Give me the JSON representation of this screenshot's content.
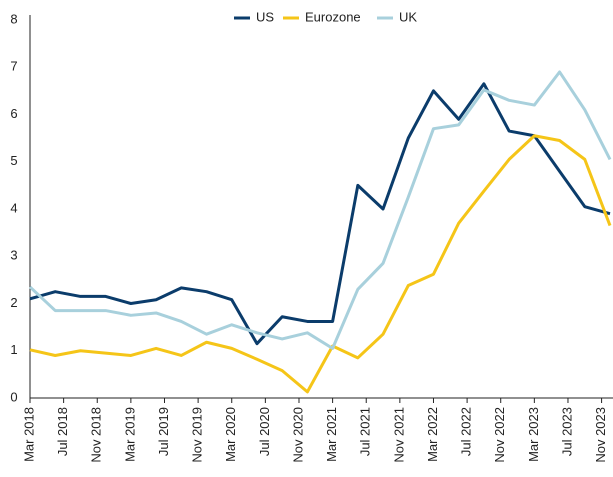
{
  "chart_data": {
    "type": "line",
    "x": [
      "2018-03",
      "2018-06",
      "2018-09",
      "2018-12",
      "2019-03",
      "2019-06",
      "2019-09",
      "2019-12",
      "2020-03",
      "2020-06",
      "2020-09",
      "2020-12",
      "2021-03",
      "2021-06",
      "2021-09",
      "2021-12",
      "2022-03",
      "2022-06",
      "2022-09",
      "2022-12",
      "2023-03",
      "2023-06",
      "2023-09",
      "2023-12"
    ],
    "series": [
      {
        "name": "US",
        "color": "#0b3c6b",
        "values": [
          2.1,
          2.25,
          2.15,
          2.15,
          2.0,
          2.08,
          2.33,
          2.25,
          2.08,
          1.15,
          1.72,
          1.62,
          1.62,
          4.5,
          4.0,
          5.5,
          6.5,
          5.9,
          6.65,
          5.65,
          5.55,
          4.8,
          4.05,
          3.9
        ]
      },
      {
        "name": "Eurozone",
        "color": "#f5c518",
        "values": [
          1.02,
          0.9,
          1.0,
          0.95,
          0.9,
          1.05,
          0.9,
          1.18,
          1.05,
          0.82,
          0.58,
          0.13,
          1.1,
          0.85,
          1.35,
          2.38,
          2.62,
          3.7,
          4.38,
          5.05,
          5.55,
          5.45,
          5.05,
          3.65
        ]
      },
      {
        "name": "UK",
        "color": "#a8d0dc",
        "values": [
          2.35,
          1.85,
          1.85,
          1.85,
          1.75,
          1.8,
          1.62,
          1.35,
          1.55,
          1.38,
          1.25,
          1.38,
          1.05,
          2.3,
          2.85,
          4.25,
          5.7,
          5.78,
          6.52,
          6.3,
          6.2,
          6.9,
          6.1,
          5.05
        ]
      }
    ],
    "xlim": [
      "2018-03",
      "2023-12"
    ],
    "xticks": [
      {
        "value": "2018-03",
        "label": "Mar 2018"
      },
      {
        "value": "2018-07",
        "label": "Jul 2018"
      },
      {
        "value": "2018-11",
        "label": "Nov 2018"
      },
      {
        "value": "2019-03",
        "label": "Mar 2019"
      },
      {
        "value": "2019-07",
        "label": "Jul 2019"
      },
      {
        "value": "2019-11",
        "label": "Nov 2019"
      },
      {
        "value": "2020-03",
        "label": "Mar 2020"
      },
      {
        "value": "2020-07",
        "label": "Jul 2020"
      },
      {
        "value": "2020-11",
        "label": "Nov 2020"
      },
      {
        "value": "2021-03",
        "label": "Mar 2021"
      },
      {
        "value": "2021-07",
        "label": "Jul 2021"
      },
      {
        "value": "2021-11",
        "label": "Nov 2021"
      },
      {
        "value": "2022-03",
        "label": "Mar 2022"
      },
      {
        "value": "2022-07",
        "label": "Jul 2022"
      },
      {
        "value": "2022-11",
        "label": "Nov 2022"
      },
      {
        "value": "2023-03",
        "label": "Mar 2023"
      },
      {
        "value": "2023-07",
        "label": "Jul 2023"
      },
      {
        "value": "2023-11",
        "label": "Nov 2023"
      }
    ],
    "ylim": [
      0,
      8
    ],
    "yticks": [
      0,
      1,
      2,
      3,
      4,
      5,
      6,
      7,
      8
    ],
    "grid": false,
    "legend": "top"
  }
}
